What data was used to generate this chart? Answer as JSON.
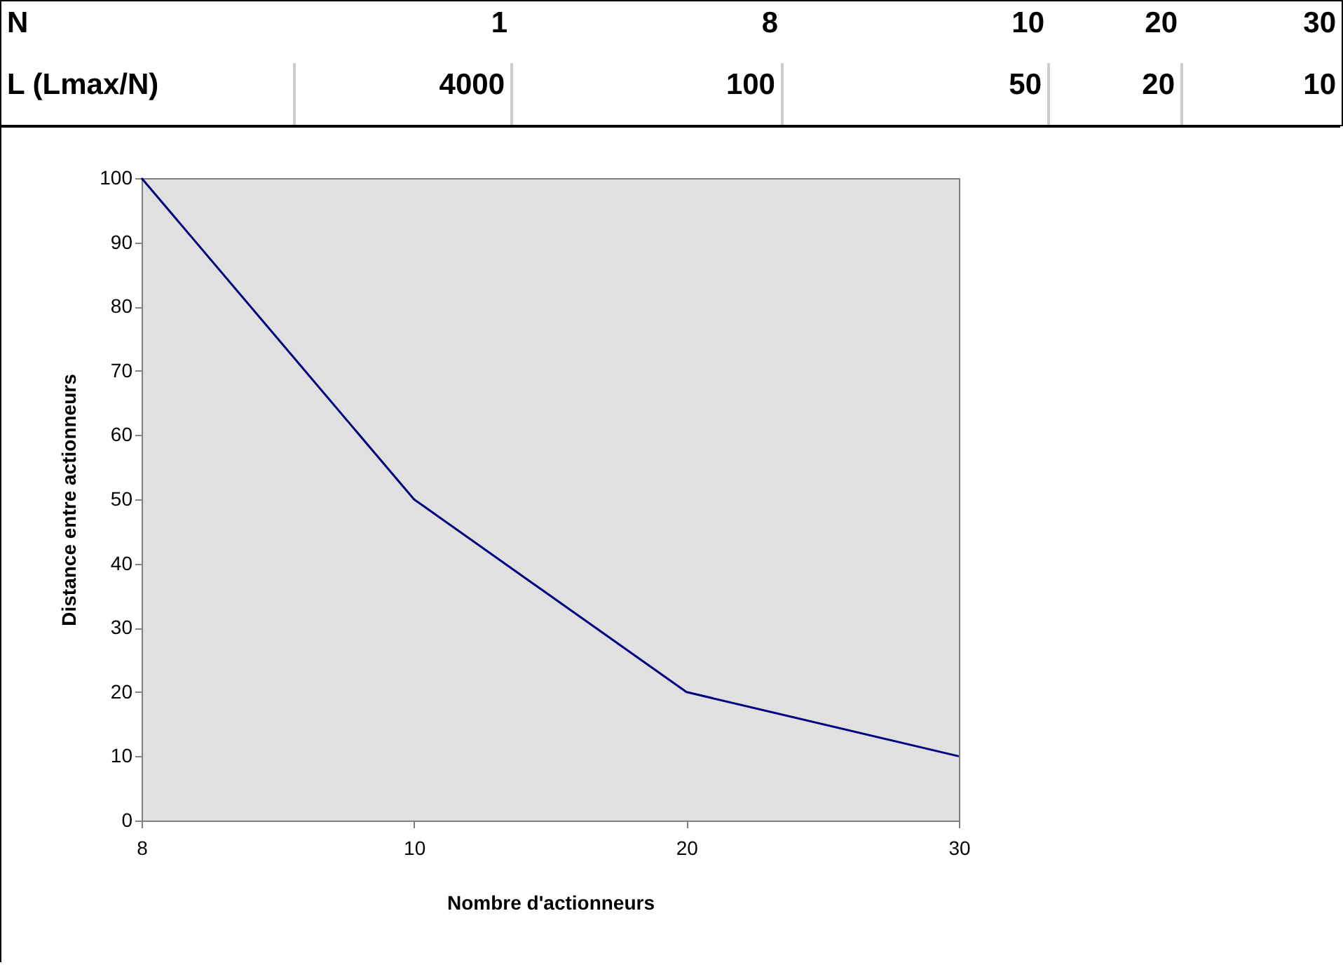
{
  "chart_data": [
    {
      "type": "other",
      "annotations": [
        "N",
        "1",
        "8",
        "10",
        "20",
        "30",
        "L (Lmax/N)",
        "4000",
        "100",
        "50",
        "20",
        "10"
      ]
    },
    {
      "type": "line",
      "xlabel": "Nombre d'actionneurs",
      "ylabel": "Distance entre actionneurs",
      "categories": [
        "8",
        "10",
        "20",
        "30"
      ],
      "values": [
        100,
        50,
        20,
        10
      ],
      "color": "#000080",
      "ylim": [
        0,
        100
      ],
      "yticks": [
        0,
        10,
        20,
        30,
        40,
        50,
        60,
        70,
        80,
        90,
        100
      ],
      "grid": false
    }
  ]
}
